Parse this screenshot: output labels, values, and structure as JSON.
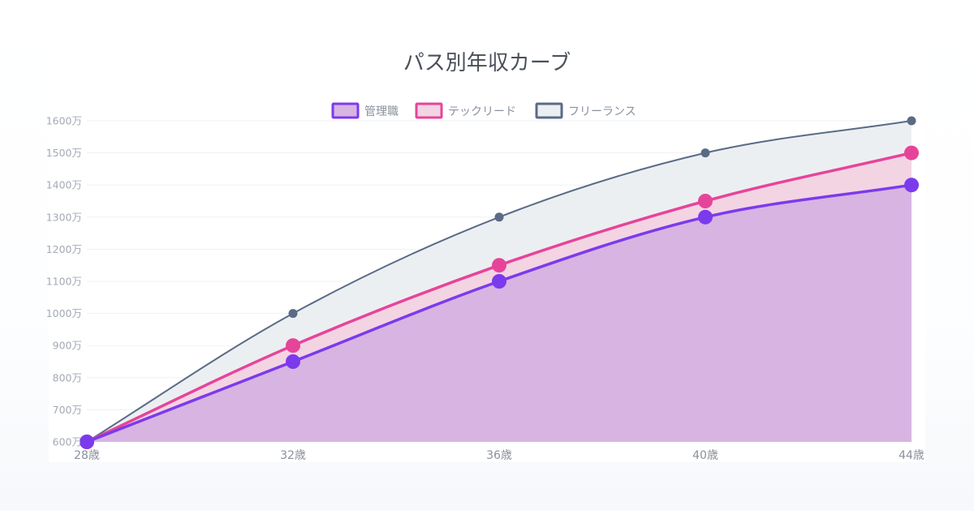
{
  "chart_data": {
    "type": "area",
    "title": "パス別年収カーブ",
    "xlabel": "",
    "ylabel": "",
    "categories": [
      "28歳",
      "32歳",
      "36歳",
      "40歳",
      "44歳"
    ],
    "y_ticks": [
      "600万",
      "700万",
      "800万",
      "900万",
      "1000万",
      "1100万",
      "1200万",
      "1300万",
      "1400万",
      "1500万",
      "1600万"
    ],
    "y_tick_values": [
      600,
      700,
      800,
      900,
      1000,
      1100,
      1200,
      1300,
      1400,
      1500,
      1600
    ],
    "ylim": [
      600,
      1600
    ],
    "grid": true,
    "legend_position": "top",
    "series": [
      {
        "name": "管理職",
        "values": [
          600,
          850,
          1100,
          1300,
          1400
        ],
        "color": "#7c3aed",
        "fill": "#d8b4e2"
      },
      {
        "name": "テックリード",
        "values": [
          600,
          900,
          1150,
          1350,
          1500
        ],
        "color": "#e6449a",
        "fill": "#f3d4e3"
      },
      {
        "name": "フリーランス",
        "values": [
          600,
          1000,
          1300,
          1500,
          1600
        ],
        "color": "#5b6b85",
        "fill": "#eceff2"
      }
    ]
  }
}
